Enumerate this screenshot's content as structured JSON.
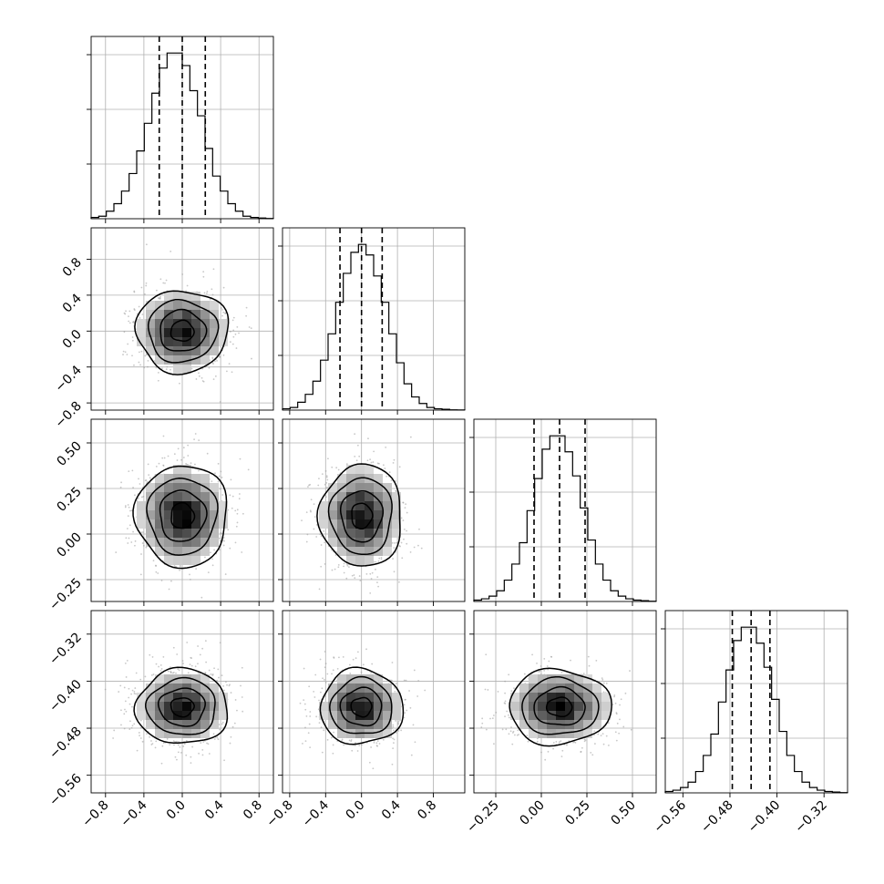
{
  "chart_data": {
    "type": "corner",
    "title": "",
    "n_params": 4,
    "parameters": [
      {
        "label": "",
        "range": [
          -0.95,
          0.95
        ],
        "ticks": [
          -0.8,
          -0.4,
          0.0,
          0.4,
          0.8
        ],
        "tick_labels": [
          "−0.8",
          "−0.4",
          "0.0",
          "0.4",
          "0.8"
        ],
        "quantiles": [
          -0.24,
          0.0,
          0.24
        ],
        "hist_counts": [
          0.5,
          1,
          3,
          6,
          11,
          18,
          27,
          38,
          50,
          60,
          66,
          66,
          61,
          51,
          41,
          28,
          17,
          11,
          6,
          3,
          1,
          0.5,
          0.3,
          0.1
        ]
      },
      {
        "label": "",
        "range": [
          -0.88,
          1.15
        ],
        "ticks": [
          -0.8,
          -0.4,
          0.0,
          0.4,
          0.8
        ],
        "tick_labels": [
          "−0.8",
          "−0.4",
          "0.0",
          "0.4",
          "0.8"
        ],
        "bottom_ticks": [
          -0.8,
          -0.4,
          0.0,
          0.4,
          0.8
        ],
        "bottom_tick_labels": [
          "−0.8",
          "−0.4",
          "0.0",
          "0.4",
          "0.8"
        ],
        "quantiles": [
          -0.24,
          0.0,
          0.23
        ],
        "hist_counts": [
          0.5,
          1,
          3,
          6,
          11,
          19,
          29,
          41,
          52,
          60,
          63,
          59,
          51,
          41,
          29,
          18,
          10,
          5,
          2.5,
          1,
          0.5,
          0.3,
          0.1,
          0.05
        ]
      },
      {
        "label": "",
        "range": [
          -0.37,
          0.63
        ],
        "ticks": [
          -0.25,
          0.0,
          0.25,
          0.5
        ],
        "tick_labels": [
          "−0.25",
          "0.00",
          "0.25",
          "0.50"
        ],
        "quantiles": [
          -0.04,
          0.1,
          0.24
        ],
        "hist_counts": [
          0.5,
          1,
          2,
          4,
          8,
          14,
          22,
          34,
          46,
          57,
          62,
          62,
          56,
          47,
          35,
          23,
          14,
          8,
          4,
          2,
          1,
          0.5,
          0.3,
          0.1
        ]
      },
      {
        "label": "",
        "range": [
          -0.59,
          -0.28
        ],
        "ticks": [
          -0.32,
          -0.4,
          -0.48,
          -0.56
        ],
        "tick_labels": [
          "−0.32",
          "−0.40",
          "−0.48",
          "−0.56"
        ],
        "bottom_ticks": [
          -0.56,
          -0.48,
          -0.4,
          -0.32
        ],
        "bottom_tick_labels": [
          "−0.56",
          "−0.48",
          "−0.40",
          "−0.32"
        ],
        "quantiles": [
          -0.476,
          -0.444,
          -0.412
        ],
        "hist_counts": [
          0.5,
          1,
          2,
          4,
          8,
          14,
          22,
          34,
          46,
          57,
          62,
          62,
          56,
          47,
          35,
          23,
          14,
          8,
          4,
          2,
          1,
          0.5,
          0.3,
          0.1
        ]
      }
    ],
    "pairs": [
      {
        "row": 1,
        "col": 0,
        "center": [
          0.0,
          0.0
        ],
        "sigma": [
          0.24,
          0.23
        ]
      },
      {
        "row": 2,
        "col": 0,
        "center": [
          0.0,
          0.1
        ],
        "sigma": [
          0.24,
          0.14
        ]
      },
      {
        "row": 2,
        "col": 1,
        "center": [
          0.0,
          0.1
        ],
        "sigma": [
          0.23,
          0.14
        ]
      },
      {
        "row": 3,
        "col": 0,
        "center": [
          0.0,
          -0.444
        ],
        "sigma": [
          0.24,
          0.032
        ]
      },
      {
        "row": 3,
        "col": 1,
        "center": [
          0.0,
          -0.444
        ],
        "sigma": [
          0.23,
          0.032
        ]
      },
      {
        "row": 3,
        "col": 2,
        "center": [
          0.1,
          -0.444
        ],
        "sigma": [
          0.14,
          0.032
        ]
      }
    ],
    "contour_sigmas": [
      0.5,
      1.0,
      1.5,
      2.0
    ],
    "grid": true,
    "scatter_color": "#9a9a9a",
    "line_color": "#000000"
  }
}
